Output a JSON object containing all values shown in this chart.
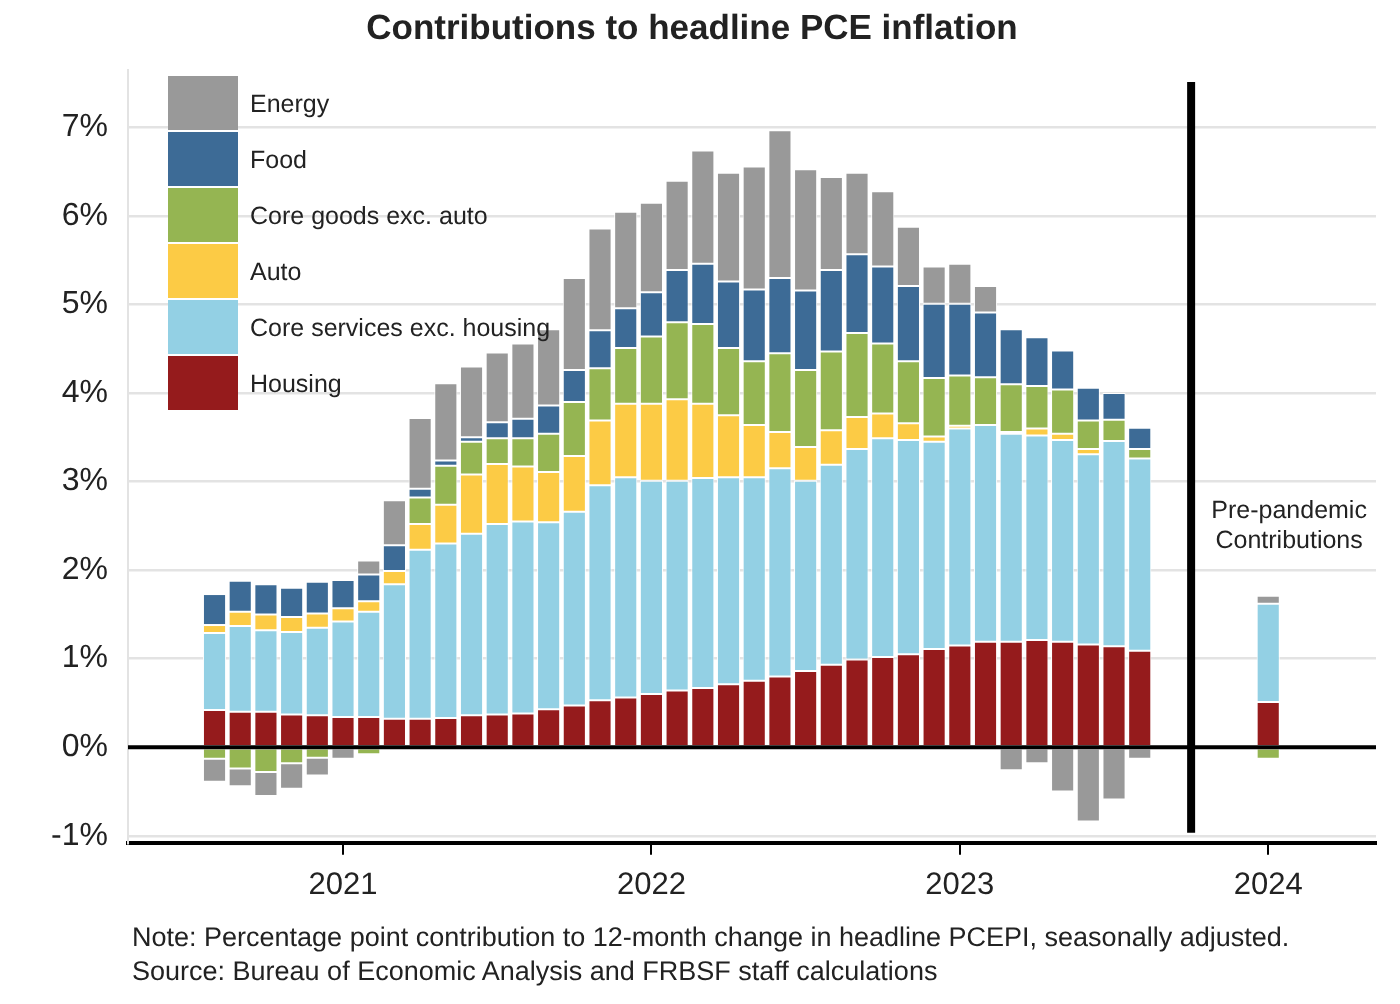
{
  "chart_data": {
    "type": "bar",
    "title": "Contributions to headline PCE inflation",
    "stacked": true,
    "grid": "y",
    "legend": "top left",
    "x": [
      "2020-08",
      "2020-09",
      "2020-10",
      "2020-11",
      "2020-12",
      "2021-01",
      "2021-02",
      "2021-03",
      "2021-04",
      "2021-05",
      "2021-06",
      "2021-07",
      "2021-08",
      "2021-09",
      "2021-10",
      "2021-11",
      "2021-12",
      "2022-01",
      "2022-02",
      "2022-03",
      "2022-04",
      "2022-05",
      "2022-06",
      "2022-07",
      "2022-08",
      "2022-09",
      "2022-10",
      "2022-11",
      "2022-12",
      "2023-01",
      "2023-02",
      "2023-03",
      "2023-04",
      "2023-05",
      "2023-06",
      "2023-07",
      "2023-08",
      "2024-01"
    ],
    "xlim": [
      "2020-04-20",
      "2024-05-07"
    ],
    "xticks": [
      {
        "value": "2021",
        "label": "2021"
      },
      {
        "value": "2022",
        "label": "2022"
      },
      {
        "value": "2023",
        "label": "2023"
      },
      {
        "value": "2024",
        "label": "2024"
      }
    ],
    "ylim": [
      -1.08,
      7.65
    ],
    "yticks": [
      {
        "value": -1,
        "label": "-1%"
      },
      {
        "value": 0,
        "label": "0%"
      },
      {
        "value": 1,
        "label": "1%"
      },
      {
        "value": 2,
        "label": "2%"
      },
      {
        "value": 3,
        "label": "3%"
      },
      {
        "value": 4,
        "label": "4%"
      },
      {
        "value": 5,
        "label": "5%"
      },
      {
        "value": 6,
        "label": "6%"
      },
      {
        "value": 7,
        "label": "7%"
      }
    ],
    "series": [
      {
        "name": "Housing",
        "color": "#951b1c",
        "values": [
          0.42,
          0.4,
          0.4,
          0.37,
          0.36,
          0.34,
          0.34,
          0.32,
          0.32,
          0.33,
          0.36,
          0.37,
          0.38,
          0.43,
          0.47,
          0.53,
          0.56,
          0.6,
          0.64,
          0.67,
          0.71,
          0.75,
          0.8,
          0.86,
          0.93,
          0.99,
          1.02,
          1.05,
          1.11,
          1.15,
          1.19,
          1.19,
          1.21,
          1.19,
          1.16,
          1.14,
          1.09,
          0.51
        ]
      },
      {
        "name": "Core services exc. housing",
        "color": "#93d0e4",
        "values": [
          0.87,
          0.97,
          0.92,
          0.93,
          0.99,
          1.08,
          1.19,
          1.52,
          1.91,
          1.97,
          2.05,
          2.15,
          2.17,
          2.11,
          2.19,
          2.43,
          2.49,
          2.41,
          2.37,
          2.37,
          2.34,
          2.3,
          2.35,
          2.15,
          2.26,
          2.38,
          2.47,
          2.42,
          2.34,
          2.45,
          2.45,
          2.35,
          2.31,
          2.28,
          2.15,
          2.32,
          2.17,
          1.11
        ]
      },
      {
        "name": "Auto",
        "color": "#fccb45",
        "values": [
          0.09,
          0.16,
          0.18,
          0.17,
          0.16,
          0.15,
          0.12,
          0.15,
          0.29,
          0.44,
          0.67,
          0.68,
          0.62,
          0.57,
          0.63,
          0.73,
          0.83,
          0.87,
          0.92,
          0.84,
          0.7,
          0.59,
          0.41,
          0.38,
          0.39,
          0.36,
          0.28,
          0.19,
          0.06,
          0.03,
          null,
          0.02,
          0.08,
          0.07,
          0.06,
          null,
          null,
          null
        ]
      },
      {
        "name": "Core goods exc. auto",
        "color": "#95b552",
        "values": [
          -0.13,
          -0.24,
          -0.28,
          -0.18,
          -0.12,
          null,
          -0.08,
          null,
          0.3,
          0.44,
          0.37,
          0.29,
          0.32,
          0.43,
          0.61,
          0.59,
          0.63,
          0.76,
          0.87,
          0.9,
          0.76,
          0.72,
          0.89,
          0.87,
          0.89,
          0.95,
          0.79,
          0.7,
          0.66,
          0.57,
          0.54,
          0.54,
          0.48,
          0.5,
          0.32,
          0.24,
          0.11,
          -0.13
        ]
      },
      {
        "name": "Food",
        "color": "#3d6b96",
        "values": [
          0.35,
          0.35,
          0.34,
          0.33,
          0.36,
          0.32,
          0.3,
          0.29,
          0.1,
          0.06,
          0.05,
          0.18,
          0.22,
          0.32,
          0.36,
          0.43,
          0.45,
          0.5,
          0.59,
          0.68,
          0.75,
          0.81,
          0.85,
          0.9,
          0.92,
          0.89,
          0.87,
          0.85,
          0.84,
          0.81,
          0.73,
          0.62,
          0.55,
          0.44,
          0.37,
          0.3,
          0.24,
          null
        ]
      },
      {
        "name": "Energy",
        "color": "#999999",
        "values": [
          -0.26,
          -0.2,
          -0.27,
          -0.29,
          -0.2,
          -0.13,
          0.16,
          0.51,
          0.8,
          0.87,
          0.8,
          0.79,
          0.85,
          0.86,
          1.04,
          1.15,
          1.09,
          1.01,
          1.01,
          1.28,
          1.23,
          1.39,
          1.67,
          1.37,
          1.05,
          0.92,
          0.85,
          0.67,
          0.42,
          0.45,
          0.3,
          -0.26,
          -0.18,
          -0.5,
          -0.84,
          -0.59,
          -0.13,
          0.09
        ]
      }
    ],
    "ref_lines": [
      {
        "axis": "y",
        "value": 0,
        "color": "#000000"
      },
      {
        "axis": "x",
        "value": "2023-10",
        "color": "#000000",
        "label": "Pre-pandemic Contributions"
      }
    ],
    "annotations": [
      "Note: Percentage point contribution to 12-month change in headline PCEPI, seasonally adjusted.",
      "Source: Bureau of Economic Analysis and FRBSF staff calculations"
    ]
  }
}
